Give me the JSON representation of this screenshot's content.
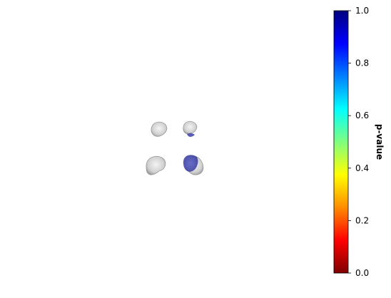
{
  "chart_data": {
    "type": "heatmap",
    "description_scale": "jet_r",
    "colorbar": {
      "label": "p-value",
      "range": [
        0.0,
        1.0
      ],
      "ticks": [
        0.0,
        0.2,
        0.4,
        0.6,
        0.8,
        1.0
      ],
      "tick_labels": [
        "0.0",
        "0.2",
        "0.4",
        "0.6",
        "0.8",
        "1.0"
      ],
      "colors": [
        "#7f0000",
        "#ff0000",
        "#ff8c00",
        "#ffff00",
        "#7fff7f",
        "#00ffff",
        "#0080ff",
        "#0000ff",
        "#00007f"
      ]
    },
    "brain_regions": [
      {
        "name": "left-upper",
        "fill": "gray"
      },
      {
        "name": "left-lower",
        "fill": "gray"
      },
      {
        "name": "right-upper",
        "fill": "gray"
      },
      {
        "name": "right-lower",
        "fill": "gray"
      },
      {
        "name": "right-highlight",
        "fill": "blue",
        "p_value": 0.95
      }
    ]
  }
}
